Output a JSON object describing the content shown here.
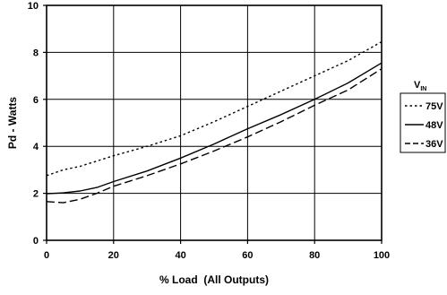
{
  "chart_data": {
    "type": "line",
    "title": "",
    "xlabel": "% Load  (All Outputs)",
    "ylabel": "Pd - Watts",
    "xlim": [
      0,
      100
    ],
    "ylim": [
      0,
      10
    ],
    "xticks": [
      0,
      20,
      40,
      60,
      80,
      100
    ],
    "yticks": [
      0,
      2,
      4,
      6,
      8,
      10
    ],
    "xtick_labels": [
      "0",
      "20",
      "40",
      "60",
      "80",
      "100"
    ],
    "ytick_labels": [
      "0",
      "2",
      "4",
      "6",
      "8",
      "10"
    ],
    "grid": true,
    "legend": {
      "title_main": "V",
      "title_sub": "IN",
      "placement": "right"
    },
    "series": [
      {
        "name": "75V",
        "style": "dotted",
        "x": [
          0,
          5,
          10,
          20,
          30,
          40,
          50,
          60,
          70,
          80,
          90,
          100
        ],
        "y": [
          2.75,
          3.0,
          3.15,
          3.6,
          4.0,
          4.45,
          5.05,
          5.7,
          6.35,
          7.0,
          7.65,
          8.45
        ]
      },
      {
        "name": "48V",
        "style": "solid",
        "x": [
          0,
          5,
          10,
          15,
          20,
          30,
          40,
          50,
          60,
          70,
          80,
          90,
          100
        ],
        "y": [
          1.98,
          2.02,
          2.1,
          2.25,
          2.5,
          2.95,
          3.5,
          4.1,
          4.75,
          5.35,
          6.0,
          6.7,
          7.55
        ]
      },
      {
        "name": "36V",
        "style": "dashed",
        "x": [
          0,
          5,
          10,
          15,
          20,
          30,
          40,
          50,
          60,
          70,
          80,
          90,
          100
        ],
        "y": [
          1.65,
          1.6,
          1.75,
          2.0,
          2.3,
          2.75,
          3.25,
          3.8,
          4.4,
          5.05,
          5.75,
          6.4,
          7.3
        ]
      }
    ]
  }
}
